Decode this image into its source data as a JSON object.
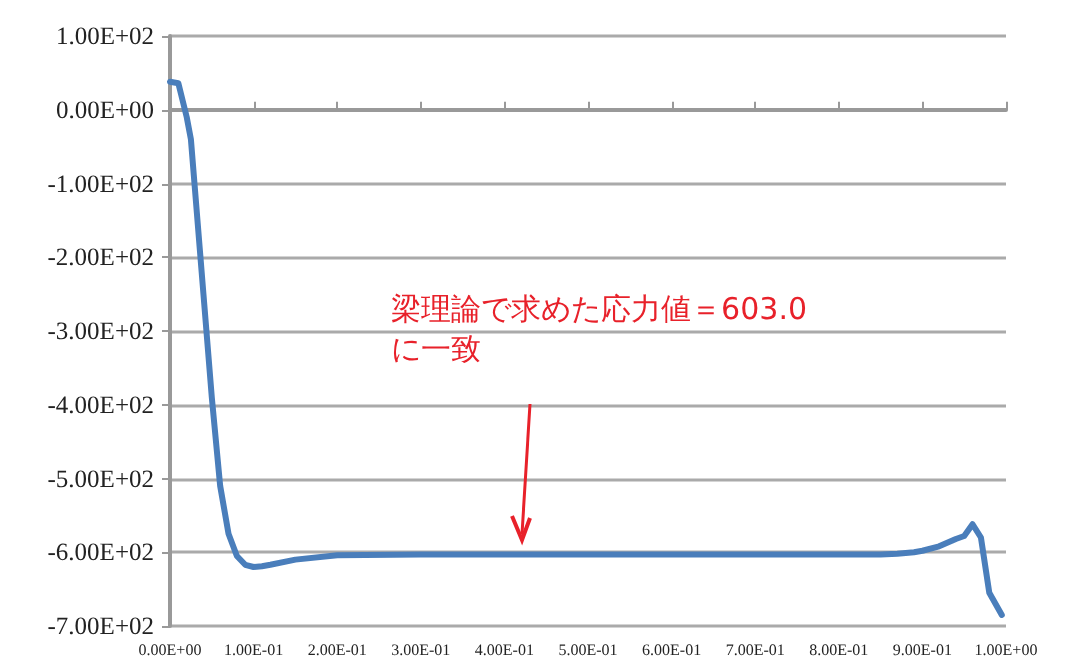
{
  "chart_data": {
    "type": "line",
    "grid": "y",
    "marker": "none",
    "line_style": "solid",
    "x": [
      0,
      0.01,
      0.02,
      0.025,
      0.03,
      0.04,
      0.05,
      0.06,
      0.07,
      0.08,
      0.09,
      0.1,
      0.11,
      0.12,
      0.15,
      0.2,
      0.3,
      0.4,
      0.5,
      0.6,
      0.7,
      0.8,
      0.85,
      0.87,
      0.89,
      0.9,
      0.92,
      0.94,
      0.95,
      0.96,
      0.97,
      0.98,
      0.995
    ],
    "series": [
      {
        "color": "#4a7ebb",
        "values": [
          38,
          36,
          -10,
          -40,
          -110,
          -250,
          -390,
          -510,
          -575,
          -605,
          -617,
          -620,
          -619,
          -617,
          -610,
          -604,
          -603,
          -603,
          -603,
          -603,
          -603,
          -603,
          -603,
          -602,
          -600,
          -598,
          -592,
          -582,
          -578,
          -562,
          -580,
          -655,
          -685
        ]
      }
    ],
    "xlim": [
      0,
      1
    ],
    "xticks": [
      {
        "value": 0,
        "label": "0.00E+00"
      },
      {
        "value": 0.1,
        "label": "1.00E-01"
      },
      {
        "value": 0.2,
        "label": "2.00E-01"
      },
      {
        "value": 0.3,
        "label": "3.00E-01"
      },
      {
        "value": 0.4,
        "label": "4.00E-01"
      },
      {
        "value": 0.5,
        "label": "5.00E-01"
      },
      {
        "value": 0.6,
        "label": "6.00E-01"
      },
      {
        "value": 0.7,
        "label": "7.00E-01"
      },
      {
        "value": 0.8,
        "label": "8.00E-01"
      },
      {
        "value": 0.9,
        "label": "9.00E-01"
      },
      {
        "value": 1,
        "label": "1.00E+00"
      }
    ],
    "ylim": [
      -700,
      100
    ],
    "yticks": [
      {
        "value": -700,
        "label": "-7.00E+02"
      },
      {
        "value": -600,
        "label": "-6.00E+02"
      },
      {
        "value": -500,
        "label": "-5.00E+02"
      },
      {
        "value": -400,
        "label": "-4.00E+02"
      },
      {
        "value": -300,
        "label": "-3.00E+02"
      },
      {
        "value": -200,
        "label": "-2.00E+02"
      },
      {
        "value": -100,
        "label": "-1.00E+02"
      },
      {
        "value": 0,
        "label": "0.00E+00"
      },
      {
        "value": 100,
        "label": "1.00E+02"
      }
    ],
    "annotations": [
      {
        "text": "梁理論で求めた応力値＝603.0\nに一致",
        "x": 0.42,
        "y": -590
      }
    ]
  }
}
